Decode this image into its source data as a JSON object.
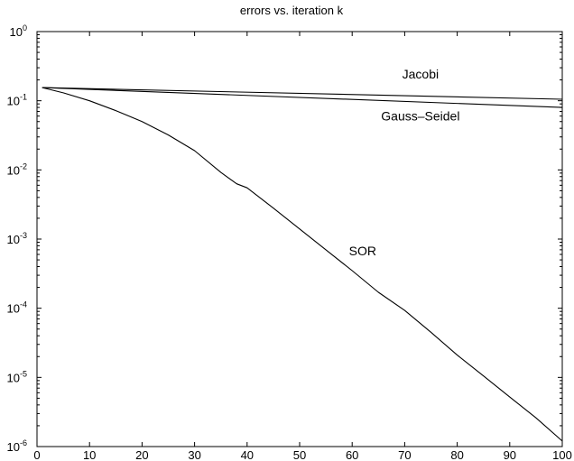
{
  "chart_data": {
    "type": "line",
    "title": "errors vs. iteration k",
    "xlabel": "",
    "ylabel": "",
    "xlim": [
      0,
      100
    ],
    "ylim": [
      1e-06,
      1
    ],
    "yscale": "log",
    "grid": false,
    "x_ticks": [
      0,
      10,
      20,
      30,
      40,
      50,
      60,
      70,
      80,
      90,
      100
    ],
    "y_ticks": [
      {
        "value": 1e-06,
        "base": "10",
        "exp": "-6"
      },
      {
        "value": 1e-05,
        "base": "10",
        "exp": "-5"
      },
      {
        "value": 0.0001,
        "base": "10",
        "exp": "-4"
      },
      {
        "value": 0.001,
        "base": "10",
        "exp": "-3"
      },
      {
        "value": 0.01,
        "base": "10",
        "exp": "-2"
      },
      {
        "value": 0.1,
        "base": "10",
        "exp": "-1"
      },
      {
        "value": 1,
        "base": "10",
        "exp": "0"
      }
    ],
    "series": [
      {
        "name": "Jacobi",
        "x": [
          1,
          100
        ],
        "y": [
          0.155,
          0.105
        ]
      },
      {
        "name": "Gauss–Seidel",
        "x": [
          1,
          100
        ],
        "y": [
          0.155,
          0.08
        ]
      },
      {
        "name": "SOR",
        "x": [
          1,
          5,
          10,
          15,
          20,
          25,
          30,
          35,
          38,
          40,
          45,
          50,
          55,
          60,
          65,
          70,
          75,
          80,
          85,
          90,
          95,
          100
        ],
        "y": [
          0.155,
          0.13,
          0.1,
          0.072,
          0.05,
          0.032,
          0.019,
          0.0092,
          0.0063,
          0.0055,
          0.0028,
          0.0014,
          0.0007,
          0.00035,
          0.00017,
          9.3e-05,
          4.5e-05,
          2.1e-05,
          1.05e-05,
          5.2e-06,
          2.6e-06,
          1.2e-06
        ]
      }
    ],
    "annotations": [
      {
        "text": "Jacobi",
        "x": 73,
        "y": 0.21
      },
      {
        "text": "Gauss–Seidel",
        "x": 73,
        "y": 0.052
      },
      {
        "text": "SOR",
        "x": 62,
        "y": 0.00058
      }
    ]
  }
}
